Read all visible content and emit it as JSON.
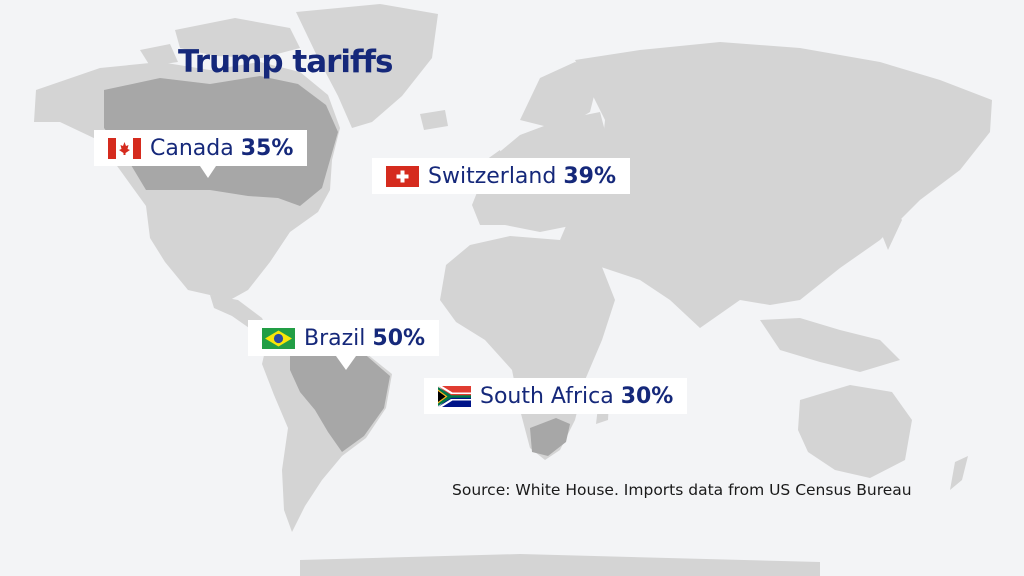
{
  "title": "Trump tariffs",
  "labels": [
    {
      "name": "Canada",
      "rate": "35%",
      "flag": "canada-flag-icon"
    },
    {
      "name": "Switzerland",
      "rate": "39%",
      "flag": "switzerland-flag-icon"
    },
    {
      "name": "Brazil",
      "rate": "50%",
      "flag": "brazil-flag-icon"
    },
    {
      "name": "South Africa",
      "rate": "30%",
      "flag": "south-africa-flag-icon"
    }
  ],
  "source": "Source: White House. Imports data from US Census Bureau",
  "colors": {
    "background": "#f3f4f6",
    "land": "#d4d4d4",
    "highlighted_land": "#a7a7a7",
    "title_text": "#15287a",
    "label_background": "#ffffff"
  }
}
